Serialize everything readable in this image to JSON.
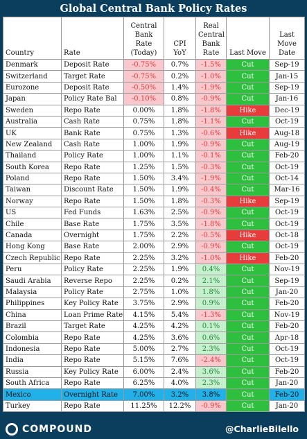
{
  "title": "Global Central Bank Policy Rates",
  "headers": {
    "country": "Country",
    "rate": "Rate",
    "central": "Central Bank Rate (Today)",
    "cpi": "CPI YoY",
    "real": "Real Central Bank Rate",
    "move": "Last Move",
    "date": "Last Move Date"
  },
  "rows": [
    {
      "country": "Denmark",
      "rate": "Deposit Rate",
      "cb": "-0.75%",
      "cpi": "0.7%",
      "real": "-1.5%",
      "move": "Cut",
      "date": "Sep-19"
    },
    {
      "country": "Switzerland",
      "rate": "Target Rate",
      "cb": "-0.75%",
      "cpi": "0.2%",
      "real": "-1.0%",
      "move": "Cut",
      "date": "Jan-15"
    },
    {
      "country": "Eurozone",
      "rate": "Deposit Rate",
      "cb": "-0.50%",
      "cpi": "1.4%",
      "real": "-1.9%",
      "move": "Cut",
      "date": "Sep-19"
    },
    {
      "country": "Japan",
      "rate": "Policy Rate Bal",
      "cb": "-0.10%",
      "cpi": "0.8%",
      "real": "-0.9%",
      "move": "Cut",
      "date": "Jan-16"
    },
    {
      "country": "Sweden",
      "rate": "Repo Rate",
      "cb": "0.00%",
      "cpi": "1.8%",
      "real": "-1.8%",
      "move": "Hike",
      "date": "Dec-19"
    },
    {
      "country": "Australia",
      "rate": "Cash Rate",
      "cb": "0.75%",
      "cpi": "1.8%",
      "real": "-1.1%",
      "move": "Cut",
      "date": "Oct-19"
    },
    {
      "country": "UK",
      "rate": "Bank Rate",
      "cb": "0.75%",
      "cpi": "1.3%",
      "real": "-0.6%",
      "move": "Hike",
      "date": "Aug-18"
    },
    {
      "country": "New Zealand",
      "rate": "Cash Rate",
      "cb": "1.00%",
      "cpi": "1.9%",
      "real": "-0.9%",
      "move": "Cut",
      "date": "Aug-19"
    },
    {
      "country": "Thailand",
      "rate": "Policy Rate",
      "cb": "1.00%",
      "cpi": "1.1%",
      "real": "-0.1%",
      "move": "Cut",
      "date": "Feb-20"
    },
    {
      "country": "South Korea",
      "rate": "Repo Rate",
      "cb": "1.25%",
      "cpi": "1.5%",
      "real": "-0.3%",
      "move": "Cut",
      "date": "Oct-19"
    },
    {
      "country": "Poland",
      "rate": "Repo Rate",
      "cb": "1.50%",
      "cpi": "3.4%",
      "real": "-1.9%",
      "move": "Cut",
      "date": "Oct-14"
    },
    {
      "country": "Taiwan",
      "rate": "Discount Rate",
      "cb": "1.50%",
      "cpi": "1.9%",
      "real": "-0.4%",
      "move": "Cut",
      "date": "Mar-16"
    },
    {
      "country": "Norway",
      "rate": "Repo Rate",
      "cb": "1.50%",
      "cpi": "1.8%",
      "real": "-0.3%",
      "move": "Hike",
      "date": "Sep-19"
    },
    {
      "country": "US",
      "rate": "Fed Funds",
      "cb": "1.63%",
      "cpi": "2.5%",
      "real": "-0.9%",
      "move": "Cut",
      "date": "Oct-19"
    },
    {
      "country": "Chile",
      "rate": "Base Rate",
      "cb": "1.75%",
      "cpi": "3.5%",
      "real": "-1.8%",
      "move": "Cut",
      "date": "Oct-19"
    },
    {
      "country": "Canada",
      "rate": "Overnight",
      "cb": "1.75%",
      "cpi": "2.2%",
      "real": "-0.5%",
      "move": "Hike",
      "date": "Oct-18"
    },
    {
      "country": "Hong Kong",
      "rate": "Base Rate",
      "cb": "2.00%",
      "cpi": "2.9%",
      "real": "-0.9%",
      "move": "Cut",
      "date": "Oct-19"
    },
    {
      "country": "Czech Republic",
      "rate": "Repo Rate",
      "cb": "2.25%",
      "cpi": "3.2%",
      "real": "-1.0%",
      "move": "Hike",
      "date": "Feb-20"
    },
    {
      "country": "Peru",
      "rate": "Policy Rate",
      "cb": "2.25%",
      "cpi": "1.9%",
      "real": "0.4%",
      "move": "Cut",
      "date": "Nov-19"
    },
    {
      "country": "Saudi Arabia",
      "rate": "Reverse Repo",
      "cb": "2.25%",
      "cpi": "0.2%",
      "real": "2.1%",
      "move": "Cut",
      "date": "Sep-19"
    },
    {
      "country": "Malaysia",
      "rate": "Policy Rate",
      "cb": "2.75%",
      "cpi": "1.0%",
      "real": "1.8%",
      "move": "Cut",
      "date": "Jan-20"
    },
    {
      "country": "Philippines",
      "rate": "Key Policy Rate",
      "cb": "3.75%",
      "cpi": "2.9%",
      "real": "0.9%",
      "move": "Cut",
      "date": "Feb-20"
    },
    {
      "country": "China",
      "rate": "Loan Prime Rate",
      "cb": "4.15%",
      "cpi": "5.4%",
      "real": "-1.3%",
      "move": "Cut",
      "date": "Nov-19"
    },
    {
      "country": "Brazil",
      "rate": "Target Rate",
      "cb": "4.25%",
      "cpi": "4.2%",
      "real": "0.1%",
      "move": "Cut",
      "date": "Feb-20"
    },
    {
      "country": "Colombia",
      "rate": "Repo Rate",
      "cb": "4.25%",
      "cpi": "3.6%",
      "real": "0.6%",
      "move": "Cut",
      "date": "Apr-18"
    },
    {
      "country": "Indonesia",
      "rate": "Repo Rate",
      "cb": "5.00%",
      "cpi": "2.7%",
      "real": "2.3%",
      "move": "Cut",
      "date": "Oct-19"
    },
    {
      "country": "India",
      "rate": "Repo Rate",
      "cb": "5.15%",
      "cpi": "7.6%",
      "real": "-2.4%",
      "move": "Cut",
      "date": "Oct-19"
    },
    {
      "country": "Russia",
      "rate": "Key Policy Rate",
      "cb": "6.00%",
      "cpi": "2.4%",
      "real": "3.6%",
      "move": "Cut",
      "date": "Feb-20"
    },
    {
      "country": "South Africa",
      "rate": "Repo Rate",
      "cb": "6.25%",
      "cpi": "4.0%",
      "real": "2.3%",
      "move": "Cut",
      "date": "Jan-20"
    },
    {
      "country": "Mexico",
      "rate": "Overnight Rate",
      "cb": "7.00%",
      "cpi": "3.2%",
      "real": "3.8%",
      "move": "Cut",
      "date": "Feb-20",
      "highlight": true
    },
    {
      "country": "Turkey",
      "rate": "Repo Rate",
      "cb": "11.25%",
      "cpi": "12.2%",
      "real": "-0.9%",
      "move": "Cut",
      "date": "Jan-20"
    }
  ],
  "footer": {
    "logo_text": "COMPOUND",
    "handle": "@CharlieBilello"
  },
  "colors": {
    "background": "#0b3d5c",
    "cut": "#2fbf3f",
    "hike": "#e83c3c",
    "negative_text": "#e23b3b",
    "positive_text": "#1f8a3a",
    "highlight_row": "#21b0e8"
  }
}
